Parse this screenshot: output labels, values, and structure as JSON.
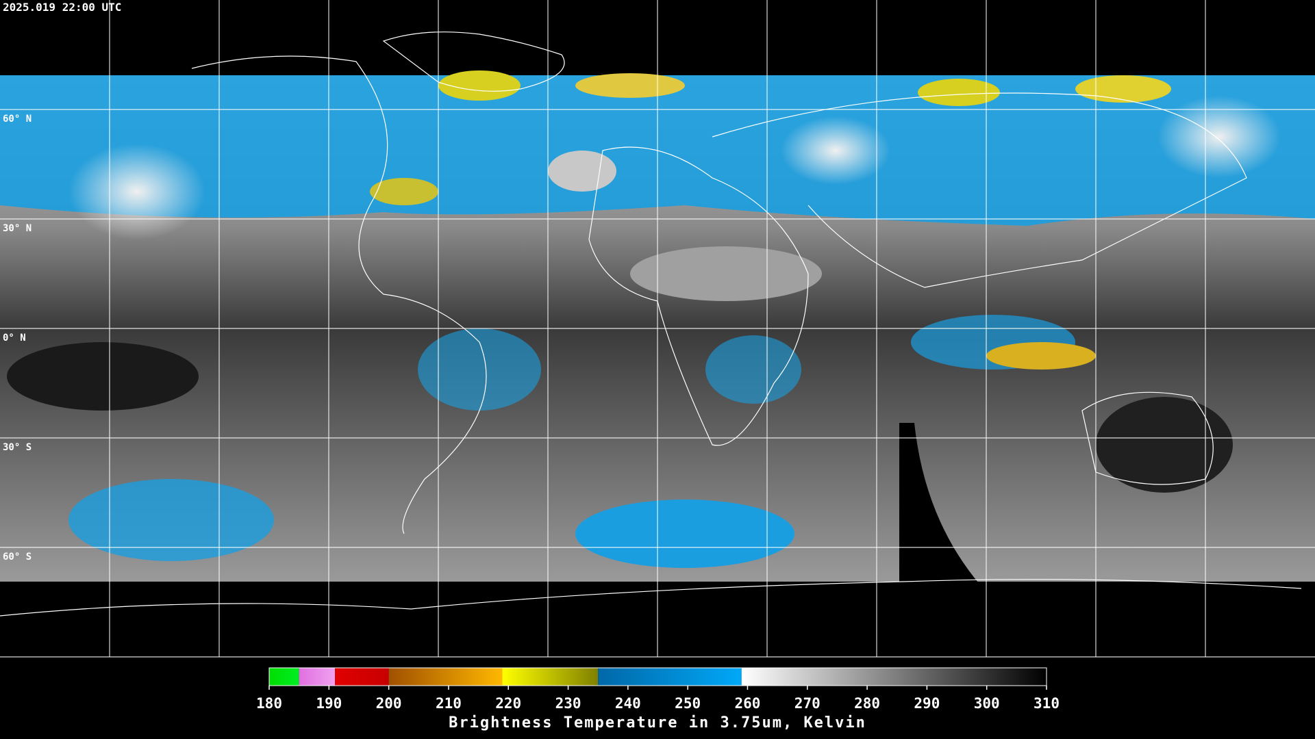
{
  "timestamp": "2025.019 22:00 UTC",
  "lat_labels": [
    "60° N",
    "30° N",
    "0° N",
    "30° S",
    "60° S"
  ],
  "colorbar": {
    "lim": [
      180,
      310
    ],
    "ticks": [
      180,
      190,
      200,
      210,
      220,
      230,
      240,
      250,
      260,
      270,
      280,
      290,
      300,
      310
    ],
    "segments": [
      {
        "from": 180,
        "to": 185,
        "color_start": "#00dd00",
        "color_end": "#00ee22"
      },
      {
        "from": 185,
        "to": 191,
        "color_start": "#e070e0",
        "color_end": "#f0a0f0"
      },
      {
        "from": 191,
        "to": 200,
        "color_start": "#e00000",
        "color_end": "#c80000"
      },
      {
        "from": 200,
        "to": 219,
        "color_start": "#a05000",
        "color_end": "#ffb800"
      },
      {
        "from": 219,
        "to": 235,
        "color_start": "#ffff00",
        "color_end": "#808000"
      },
      {
        "from": 235,
        "to": 259,
        "color_start": "#0068a8",
        "color_end": "#00a8f8"
      },
      {
        "from": 259,
        "to": 310,
        "color_start": "#ffffff",
        "color_end": "#000000"
      }
    ],
    "caption": "Brightness Temperature in 3.75um, Kelvin"
  }
}
